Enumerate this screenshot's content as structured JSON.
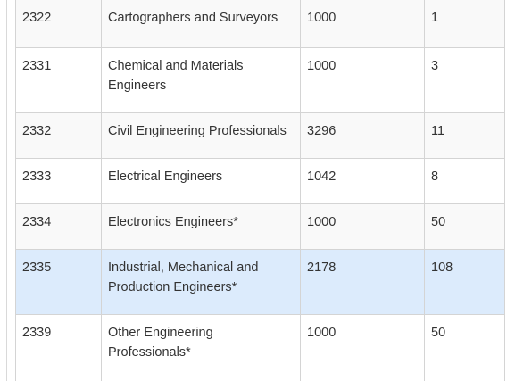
{
  "table": {
    "rows": [
      {
        "code": "2322",
        "occupation": "Cartographers and Surveyors",
        "value": "1000",
        "count": "1"
      },
      {
        "code": "2331",
        "occupation": "Chemical and Materials Engineers",
        "value": "1000",
        "count": "3"
      },
      {
        "code": "2332",
        "occupation": "Civil Engineering Professionals",
        "value": "3296",
        "count": "11"
      },
      {
        "code": "2333",
        "occupation": "Electrical Engineers",
        "value": "1042",
        "count": "8"
      },
      {
        "code": "2334",
        "occupation": "Electronics Engineers*",
        "value": "1000",
        "count": "50"
      },
      {
        "code": "2335",
        "occupation": "Industrial, Mechanical and Production Engineers*",
        "value": "2178",
        "count": "108"
      },
      {
        "code": "2339",
        "occupation": "Other Engineering Professionals*",
        "value": "1000",
        "count": "50"
      }
    ]
  },
  "colors": {
    "row_odd": "#f9f9f9",
    "row_even": "#ffffff",
    "row_highlight": "#dcebfc",
    "border": "#d4d4d4",
    "text": "#333333"
  }
}
